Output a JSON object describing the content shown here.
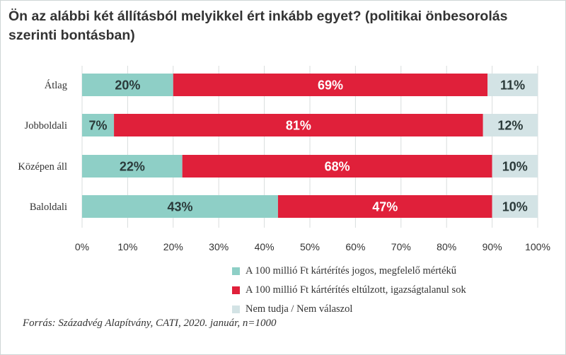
{
  "title": "Ön az alábbi két állításból melyikkel ért inkább egyet? (politikai önbesorolás szerinti bontásban)",
  "source": "Forrás: Századvég Alapítvány, CATI, 2020. január, n=1000",
  "chart_data": {
    "type": "bar",
    "orientation": "horizontal",
    "stacked": true,
    "title": "Ön az alábbi két állításból melyikkel ért inkább egyet? (politikai önbesorolás szerinti bontásban)",
    "categories": [
      "Átlag",
      "Jobboldali",
      "Középen áll",
      "Baloldali"
    ],
    "series": [
      {
        "name": "A 100 millió Ft kártérítés jogos, megfelelő mértékű",
        "color": "#8ecfc6",
        "values": [
          20,
          7,
          22,
          43
        ]
      },
      {
        "name": "A 100 millió Ft kártérítés eltúlzott, igazságtalanul sok",
        "color": "#e0203a",
        "values": [
          69,
          81,
          68,
          47
        ]
      },
      {
        "name": "Nem tudja / Nem válaszol",
        "color": "#d3e3e5",
        "values": [
          11,
          12,
          10,
          10
        ]
      }
    ],
    "value_labels": [
      [
        "20%",
        "69%",
        "11%"
      ],
      [
        "7%",
        "81%",
        "12%"
      ],
      [
        "22%",
        "68%",
        "10%"
      ],
      [
        "43%",
        "47%",
        "10%"
      ]
    ],
    "label_colors": [
      "#2b3a3a",
      "#ffffff",
      "#2b3a3a"
    ],
    "xticks": [
      "0%",
      "10%",
      "20%",
      "30%",
      "40%",
      "50%",
      "60%",
      "70%",
      "80%",
      "90%",
      "100%"
    ],
    "xlim": [
      0,
      100
    ],
    "grid": true,
    "legend_position": "bottom"
  }
}
